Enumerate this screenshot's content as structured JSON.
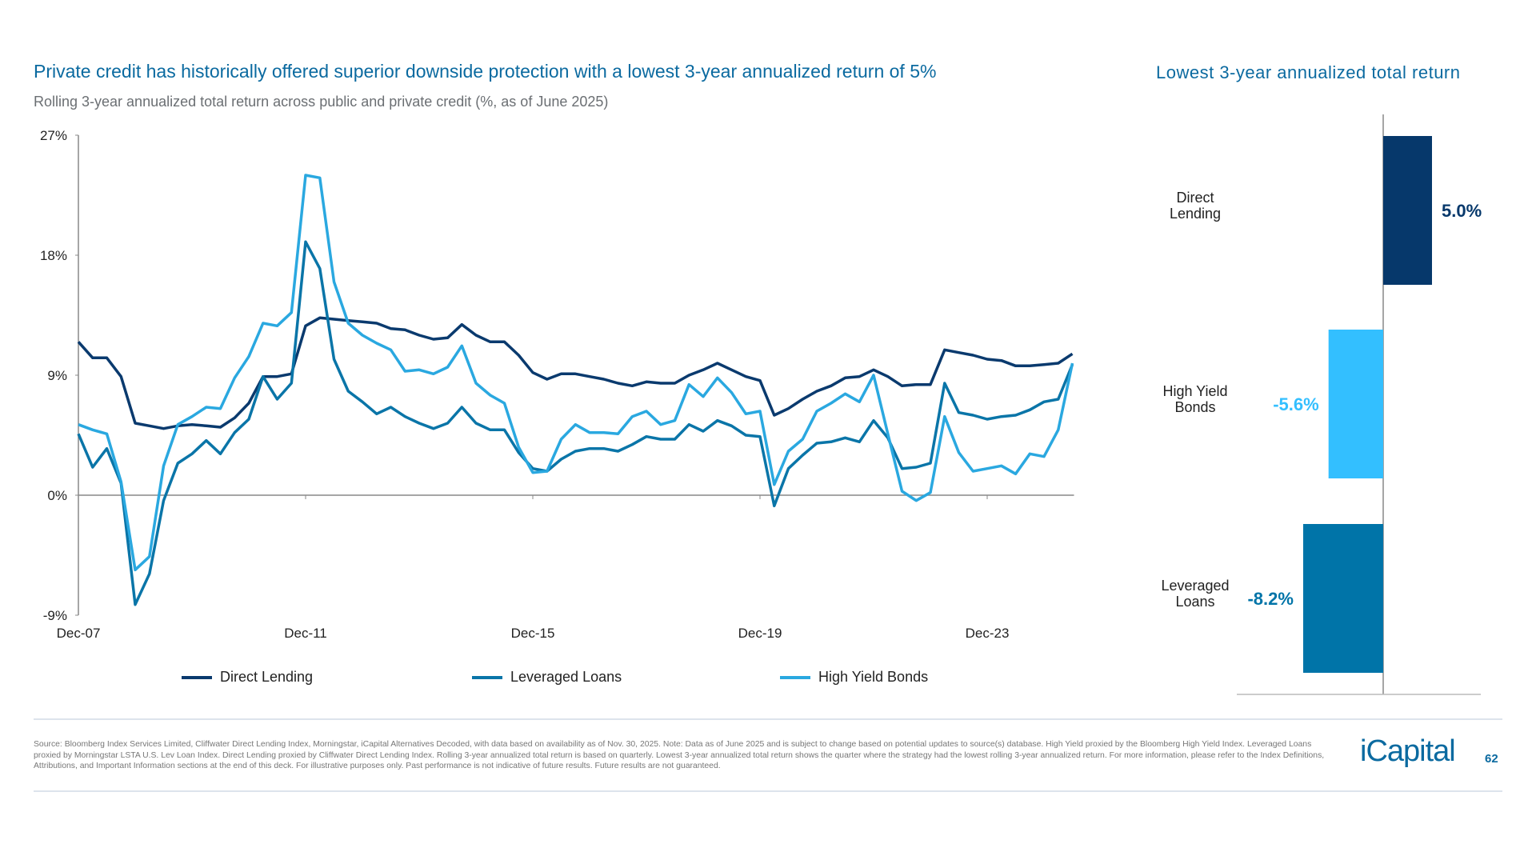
{
  "header": {
    "title": "Private credit has historically offered superior downside protection with a lowest 3-year annualized return of 5%",
    "subtitle": "Rolling 3-year annualized total return across public and private credit (%, as of June 2025)"
  },
  "chart_data": [
    {
      "type": "line",
      "x_start": "Dec-07",
      "x_frequency": "quarterly",
      "x_tick_labels": [
        "Dec-07",
        "Dec-11",
        "Dec-15",
        "Dec-19",
        "Dec-23"
      ],
      "y_tick_labels": [
        "27%",
        "18%",
        "9%",
        "0%",
        "-9%"
      ],
      "ylim": [
        -9,
        27
      ],
      "grid": false,
      "legend_position": "bottom",
      "series": [
        {
          "name": "Direct Lending",
          "color": "#0a3a6e",
          "values": [
            11.5,
            10.3,
            10.3,
            8.9,
            5.4,
            5.2,
            5.0,
            5.2,
            5.3,
            5.2,
            5.1,
            5.8,
            6.9,
            8.9,
            8.9,
            9.1,
            12.7,
            13.3,
            13.2,
            13.1,
            13.0,
            12.9,
            12.5,
            12.4,
            12.0,
            11.7,
            11.8,
            12.8,
            12.0,
            11.5,
            11.5,
            10.5,
            9.2,
            8.7,
            9.1,
            9.1,
            8.9,
            8.7,
            8.4,
            8.2,
            8.5,
            8.4,
            8.4,
            9.0,
            9.4,
            9.9,
            9.4,
            8.9,
            8.6,
            6.0,
            6.5,
            7.2,
            7.8,
            8.2,
            8.8,
            8.9,
            9.4,
            8.9,
            8.2,
            8.3,
            8.3,
            10.9,
            10.7,
            10.5,
            10.2,
            10.1,
            9.7,
            9.7,
            9.8,
            9.9,
            10.6
          ]
        },
        {
          "name": "Leveraged Loans",
          "color": "#0a75a8",
          "values": [
            4.6,
            2.1,
            3.5,
            0.9,
            -8.2,
            -5.9,
            -0.4,
            2.4,
            3.1,
            4.1,
            3.1,
            4.7,
            5.7,
            8.9,
            7.2,
            8.4,
            19.0,
            17.0,
            10.2,
            7.8,
            7.0,
            6.1,
            6.6,
            5.9,
            5.4,
            5.0,
            5.4,
            6.6,
            5.4,
            4.9,
            4.9,
            3.2,
            2.0,
            1.8,
            2.7,
            3.3,
            3.5,
            3.5,
            3.3,
            3.8,
            4.4,
            4.2,
            4.2,
            5.3,
            4.8,
            5.6,
            5.2,
            4.5,
            4.4,
            -0.8,
            2.0,
            3.0,
            3.9,
            4.0,
            4.3,
            4.0,
            5.6,
            4.3,
            2.0,
            2.1,
            2.4,
            8.4,
            6.2,
            6.0,
            5.7,
            5.9,
            6.0,
            6.4,
            7.0,
            7.2,
            9.8
          ]
        },
        {
          "name": "High Yield Bonds",
          "color": "#2aa8e0",
          "values": [
            5.3,
            4.9,
            4.6,
            1.0,
            -5.6,
            -4.6,
            2.2,
            5.3,
            5.9,
            6.6,
            6.5,
            8.8,
            10.4,
            12.9,
            12.7,
            13.7,
            24.0,
            23.8,
            16.0,
            12.9,
            12.0,
            11.4,
            10.9,
            9.3,
            9.4,
            9.1,
            9.6,
            11.2,
            8.4,
            7.5,
            6.9,
            3.6,
            1.7,
            1.8,
            4.2,
            5.3,
            4.7,
            4.7,
            4.6,
            5.9,
            6.3,
            5.3,
            5.6,
            8.3,
            7.4,
            8.8,
            7.7,
            6.1,
            6.3,
            0.8,
            3.3,
            4.2,
            6.3,
            6.9,
            7.6,
            7.0,
            9.0,
            4.6,
            0.3,
            -0.4,
            0.2,
            5.9,
            3.2,
            1.8,
            2.0,
            2.2,
            1.6,
            3.1,
            2.9,
            4.9,
            9.9
          ]
        }
      ]
    },
    {
      "type": "bar",
      "orientation": "horizontal",
      "title": "Lowest 3-year annualized total return",
      "categories": [
        [
          "Direct",
          "Lending"
        ],
        [
          "High Yield",
          "Bonds"
        ],
        [
          "Leveraged",
          "Loans"
        ]
      ],
      "values": [
        5.0,
        -5.6,
        -8.2
      ],
      "value_labels": [
        "5.0%",
        "-5.6%",
        "-8.2%"
      ],
      "colors": [
        "#06386b",
        "#33bfff",
        "#0074a8"
      ]
    }
  ],
  "footer": {
    "footnote": "Source: Bloomberg Index Services Limited, Cliffwater Direct Lending Index, Morningstar, iCapital Alternatives Decoded, with data based on availability as of Nov. 30, 2025. Note: Data as of June 2025 and is subject to change based on potential updates to source(s) database. High Yield proxied by the Bloomberg High Yield Index. Leveraged Loans proxied by Morningstar LSTA U.S. Lev Loan Index. Direct Lending proxied by Cliffwater Direct Lending Index. Rolling 3-year annualized total return is based on quarterly. Lowest 3-year annualized total return shows the quarter where the strategy had the lowest rolling 3-year annualized return. For more information, please refer to the Index Definitions, Attributions, and Important Information sections at the end of this deck. For illustrative purposes only. Past performance is not indicative of future results. Future results are not guaranteed.",
    "logo": "iCapital",
    "page_number": "62"
  }
}
